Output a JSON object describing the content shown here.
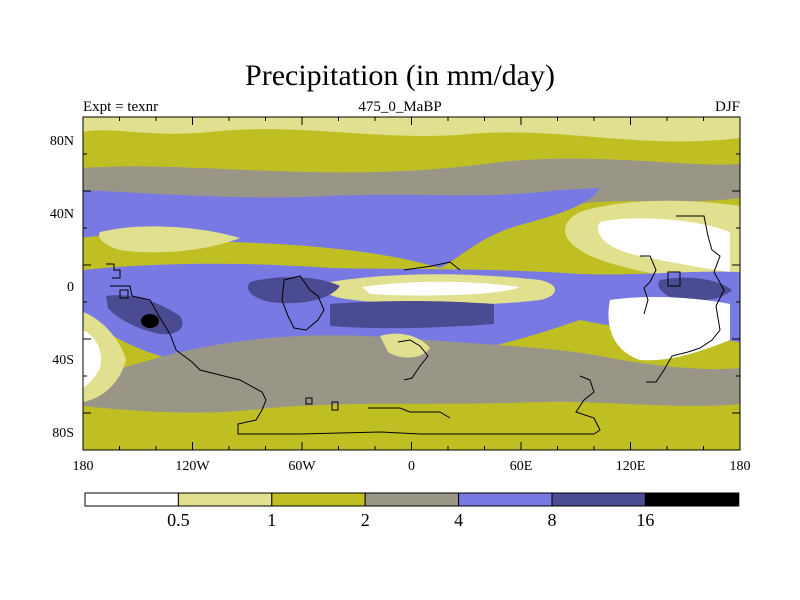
{
  "map": {
    "title": "Precipitation (in mm/day)",
    "experiment_label": "Expt = texnr",
    "period_label": "475_0_MaBP",
    "season_label": "DJF",
    "lat_ticks": [
      "80N",
      "40N",
      "0",
      "40S",
      "80S"
    ],
    "lon_ticks": [
      "180",
      "120W",
      "60W",
      "0",
      "60E",
      "120E",
      "180"
    ]
  },
  "legend": {
    "colors": [
      "#ffffff",
      "#e0e08e",
      "#bfbf24",
      "#999688",
      "#7979e4",
      "#4b4b91",
      "#000000"
    ],
    "labels": [
      "0.5",
      "1",
      "2",
      "4",
      "8",
      "16"
    ]
  }
}
